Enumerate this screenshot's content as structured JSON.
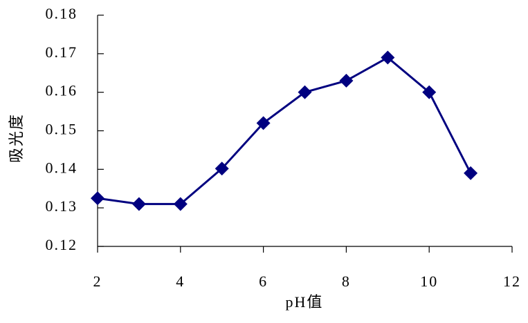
{
  "chart_data": {
    "type": "line",
    "x_label": "pH值",
    "y_label": "吸光度",
    "x": [
      2,
      3,
      4,
      5,
      6,
      7,
      8,
      9,
      10,
      11
    ],
    "series": [
      {
        "name": "吸光度",
        "color": "#000080",
        "values": [
          0.1325,
          0.131,
          0.131,
          0.1402,
          0.152,
          0.16,
          0.163,
          0.169,
          0.16,
          0.139
        ]
      }
    ],
    "xlim": [
      2,
      12
    ],
    "xticks": [
      2,
      4,
      6,
      8,
      10,
      12
    ],
    "ylim": [
      0.12,
      0.18
    ],
    "yticks": [
      0.12,
      0.13,
      0.14,
      0.15,
      0.16,
      0.17,
      0.18
    ],
    "grid": false
  }
}
